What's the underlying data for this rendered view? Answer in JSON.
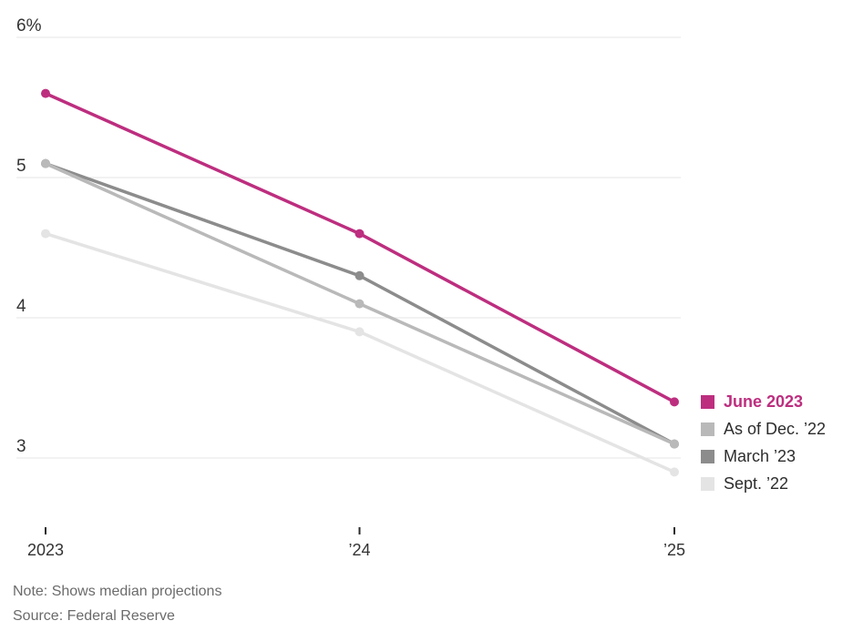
{
  "chart_data": {
    "type": "line",
    "title": "",
    "x": [
      "2023",
      "’24",
      "’25"
    ],
    "series": [
      {
        "name": "June 2023",
        "values": [
          5.6,
          4.6,
          3.4
        ],
        "color": "#bd2e7f",
        "emphasis": true
      },
      {
        "name": "As of Dec. ’22",
        "values": [
          5.1,
          4.1,
          3.1
        ],
        "color": "#b9b9b9",
        "emphasis": false
      },
      {
        "name": "March ’23",
        "values": [
          5.1,
          4.3,
          3.1
        ],
        "color": "#8c8c8c",
        "emphasis": false
      },
      {
        "name": "Sept. ’22",
        "values": [
          4.6,
          3.9,
          2.9
        ],
        "color": "#e4e4e4",
        "emphasis": false
      }
    ],
    "y_ticks": [
      6,
      5,
      4,
      3
    ],
    "y_tick_labels": [
      "6%",
      "5",
      "4",
      "3"
    ],
    "ylim": [
      2.75,
      6.15
    ],
    "unit": "%",
    "grid": "horizontal-only",
    "gridline_color": "#e6e6e6",
    "axis_text_color": "#333333",
    "legend_position": "right"
  },
  "notes": {
    "note": "Note: Shows median projections",
    "source": "Source: Federal Reserve"
  }
}
